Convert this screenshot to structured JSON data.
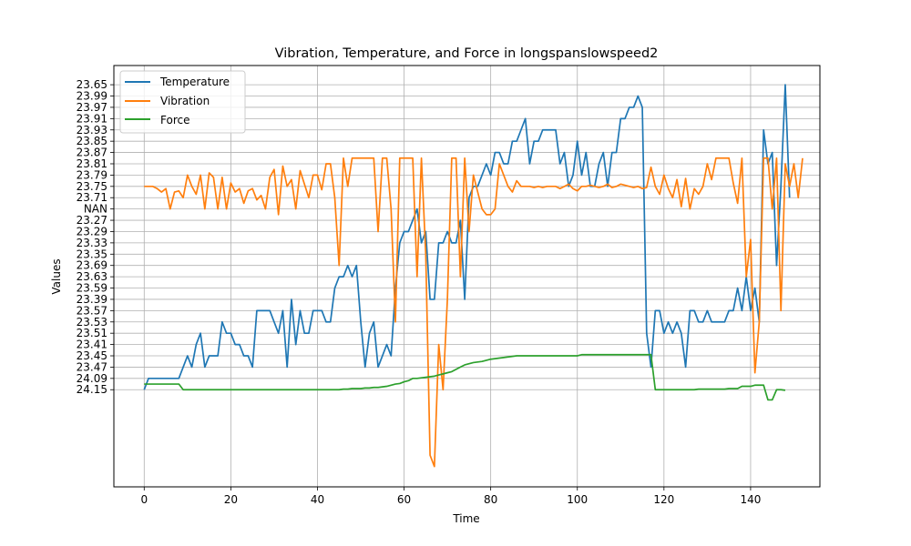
{
  "chart_data": {
    "type": "line",
    "title": "Vibration, Temperature, and Force in longspanslowspeed2",
    "xlabel": "Time",
    "ylabel": "Values",
    "xlim": [
      -7,
      156
    ],
    "x_ticks": [
      0,
      20,
      40,
      60,
      80,
      100,
      120,
      140
    ],
    "y_axis_kind": "categorical",
    "y_categories_bottom_to_top": [
      "24.15",
      "24.09",
      "23.47",
      "23.45",
      "23.41",
      "23.51",
      "23.53",
      "23.57",
      "23.39",
      "23.59",
      "23.63",
      "23.69",
      "23.35",
      "23.33",
      "23.29",
      "23.27",
      "NAN",
      "23.71",
      "23.75",
      "23.79",
      "23.81",
      "23.87",
      "23.85",
      "23.93",
      "23.91",
      "23.97",
      "23.99",
      "23.65"
    ],
    "y_index_range": [
      -8.6,
      28.7
    ],
    "grid": true,
    "legend_position": "upper-left",
    "legend": [
      "Temperature",
      "Vibration",
      "Force"
    ],
    "series": [
      {
        "name": "Temperature",
        "color": "#1f77b4",
        "y_index": [
          0,
          1,
          1,
          1,
          1,
          1,
          1,
          1,
          1,
          2,
          3,
          2,
          4,
          5,
          2,
          3,
          3,
          3,
          6,
          5,
          5,
          4,
          4,
          3,
          3,
          2,
          7,
          7,
          7,
          7,
          6,
          5,
          7,
          2,
          8,
          4,
          7,
          5,
          5,
          7,
          7,
          7,
          6,
          6,
          9,
          10,
          10,
          11,
          10,
          11,
          6,
          2,
          5,
          6,
          2,
          3,
          4,
          3,
          9,
          13,
          14,
          14,
          15,
          16,
          13,
          14,
          8,
          8,
          13,
          13,
          14,
          13,
          13,
          15,
          8,
          17,
          18,
          18,
          19,
          20,
          19,
          21,
          21,
          20,
          20,
          22,
          22,
          23,
          24,
          20,
          22,
          22,
          23,
          23,
          23,
          23,
          20,
          21,
          18,
          19,
          22,
          19,
          21,
          18,
          18,
          20,
          21,
          18,
          21,
          21,
          24,
          24,
          25,
          25,
          26,
          25,
          5,
          2,
          7,
          7,
          5,
          6,
          5,
          6,
          5,
          2,
          7,
          7,
          6,
          6,
          7,
          6,
          6,
          6,
          6,
          7,
          7,
          9,
          7,
          10,
          7,
          9,
          6,
          23,
          20,
          21,
          11,
          18,
          27,
          17
        ],
        "note": "values are category indexes on the categorical y-axis (0 = 24.15 ... 27 = 23.65)"
      },
      {
        "name": "Vibration",
        "color": "#ff7f0e",
        "y_index": [
          18,
          18,
          18,
          17.8,
          17.5,
          17.8,
          16,
          17.5,
          17.6,
          17,
          19,
          18,
          17.3,
          19,
          16,
          19.2,
          18.8,
          16,
          18.8,
          16,
          18.3,
          17.5,
          17.8,
          16.5,
          17.6,
          17.8,
          16.8,
          17.2,
          16,
          18.8,
          19.5,
          15.5,
          19.8,
          18,
          18.6,
          16,
          19.4,
          18.2,
          17,
          19,
          19,
          17.7,
          20,
          20,
          17,
          11,
          20.5,
          18,
          20.5,
          20.5,
          20.5,
          20.5,
          20.5,
          20.5,
          14,
          20.5,
          20.5,
          16,
          6,
          20.5,
          20.5,
          20.5,
          20.5,
          10,
          20.5,
          12,
          -5.8,
          -6.8,
          4,
          0,
          8,
          20.5,
          20.5,
          10,
          20.5,
          14,
          19,
          17.5,
          16,
          15.5,
          15.5,
          16,
          20,
          19,
          18,
          17.5,
          18.5,
          18,
          18,
          18,
          17.9,
          18,
          17.9,
          18,
          18,
          18,
          17.8,
          18,
          18.2,
          17.8,
          17.6,
          18,
          18,
          18.1,
          18,
          17.9,
          18,
          18.2,
          17.9,
          18,
          18.2,
          18.1,
          18,
          17.9,
          18,
          17.8,
          17.9,
          19.7,
          18,
          17.3,
          19,
          17.8,
          17,
          18.6,
          16.2,
          18.7,
          16,
          17.8,
          17.3,
          18,
          20,
          18.6,
          20.5,
          20.5,
          20.5,
          20.5,
          18.3,
          16.5,
          20.5,
          10,
          13.3,
          1.5,
          6,
          20.5,
          20.5,
          16,
          20.5,
          7,
          20,
          18,
          20,
          17,
          20.5
        ],
        "note": "values are category indexes on the categorical y-axis"
      },
      {
        "name": "Force",
        "color": "#2ca02c",
        "y_index": [
          0.5,
          0.5,
          0.5,
          0.5,
          0.5,
          0.5,
          0.5,
          0.5,
          0.5,
          0,
          0,
          0,
          0,
          0,
          0,
          0,
          0,
          0,
          0,
          0,
          0,
          0,
          0,
          0,
          0,
          0,
          0,
          0,
          0,
          0,
          0,
          0,
          0,
          0,
          0,
          0,
          0,
          0,
          0,
          0,
          0,
          0,
          0,
          0,
          0,
          0,
          0.05,
          0.05,
          0.1,
          0.1,
          0.1,
          0.15,
          0.15,
          0.2,
          0.2,
          0.25,
          0.3,
          0.4,
          0.5,
          0.55,
          0.7,
          0.8,
          1,
          1,
          1.05,
          1.1,
          1.15,
          1.2,
          1.3,
          1.4,
          1.5,
          1.6,
          1.8,
          2,
          2.2,
          2.3,
          2.4,
          2.45,
          2.5,
          2.6,
          2.7,
          2.75,
          2.8,
          2.85,
          2.9,
          2.95,
          3,
          3,
          3,
          3,
          3,
          3,
          3,
          3,
          3,
          3,
          3,
          3,
          3,
          3,
          3,
          3.1,
          3.1,
          3.1,
          3.1,
          3.1,
          3.1,
          3.1,
          3.1,
          3.1,
          3.1,
          3.1,
          3.1,
          3.1,
          3.1,
          3.1,
          3.1,
          3.1,
          0,
          0,
          0,
          0,
          0,
          0,
          0,
          0,
          0,
          0,
          0.05,
          0.05,
          0.05,
          0.05,
          0.05,
          0.05,
          0.05,
          0.1,
          0.1,
          0.1,
          0.3,
          0.3,
          0.3,
          0.4,
          0.4,
          0.4,
          -0.9,
          -0.9,
          0,
          0,
          -0.05
        ],
        "note": "values are category indexes on the categorical y-axis"
      }
    ]
  }
}
